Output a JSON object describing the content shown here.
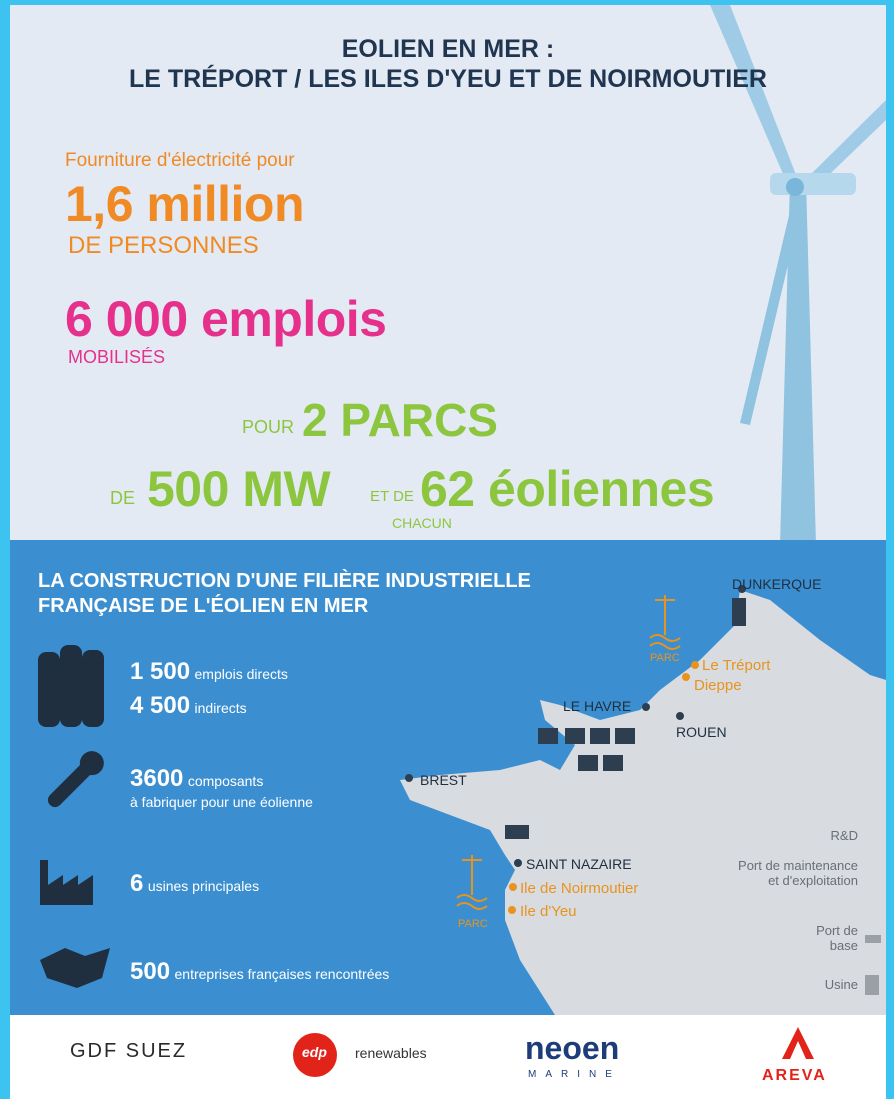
{
  "header": {
    "title": [
      "EOLIEN EN MER :",
      "LE TRÉPORT / LES ILES D'YEU ET DE NOIRMOUTIER"
    ]
  },
  "stats": {
    "supply": {
      "intro": "Fourniture d'électricité pour",
      "value": "1,6 million",
      "unit": "DE PERSONNES"
    },
    "jobs": {
      "value": "6 000 emplois",
      "unit": "MOBILISÉS"
    },
    "parks": {
      "pour": "POUR",
      "count": "2 PARCS",
      "de": "DE",
      "power": "500 MW",
      "etde": "ET DE",
      "turbines": "62 éoliennes",
      "chacun": "CHACUN"
    }
  },
  "section": {
    "title": [
      "LA CONSTRUCTION D'UNE FILIÈRE INDUSTRIELLE",
      "FRANÇAISE DE L'ÉOLIEN EN MER"
    ],
    "items": [
      {
        "value": "1 500",
        "label": "emplois directs"
      },
      {
        "value": "4 500",
        "label": "indirects"
      },
      {
        "value": "3600",
        "label": "composants",
        "sub": "à fabriquer pour une éolienne"
      },
      {
        "value": "6",
        "label": "usines principales"
      },
      {
        "value": "500",
        "label": "entreprises françaises rencontrées"
      }
    ]
  },
  "map": {
    "places": [
      "DUNKERQUE",
      "LE HAVRE",
      "ROUEN",
      "BREST",
      "SAINT NAZAIRE"
    ],
    "sites": [
      "Le Tréport",
      "Dieppe",
      "Ile de Noirmoutier",
      "Ile d'Yeu"
    ],
    "parks": [
      "PARC",
      "PARC"
    ],
    "legend": [
      "R&D",
      "Port de maintenance et d'exploitation",
      "Port de base",
      "Usine"
    ]
  },
  "logos": [
    "GDF SUEZ",
    "edp",
    "renewables",
    "neoen",
    "MARINE",
    "AREVA"
  ]
}
